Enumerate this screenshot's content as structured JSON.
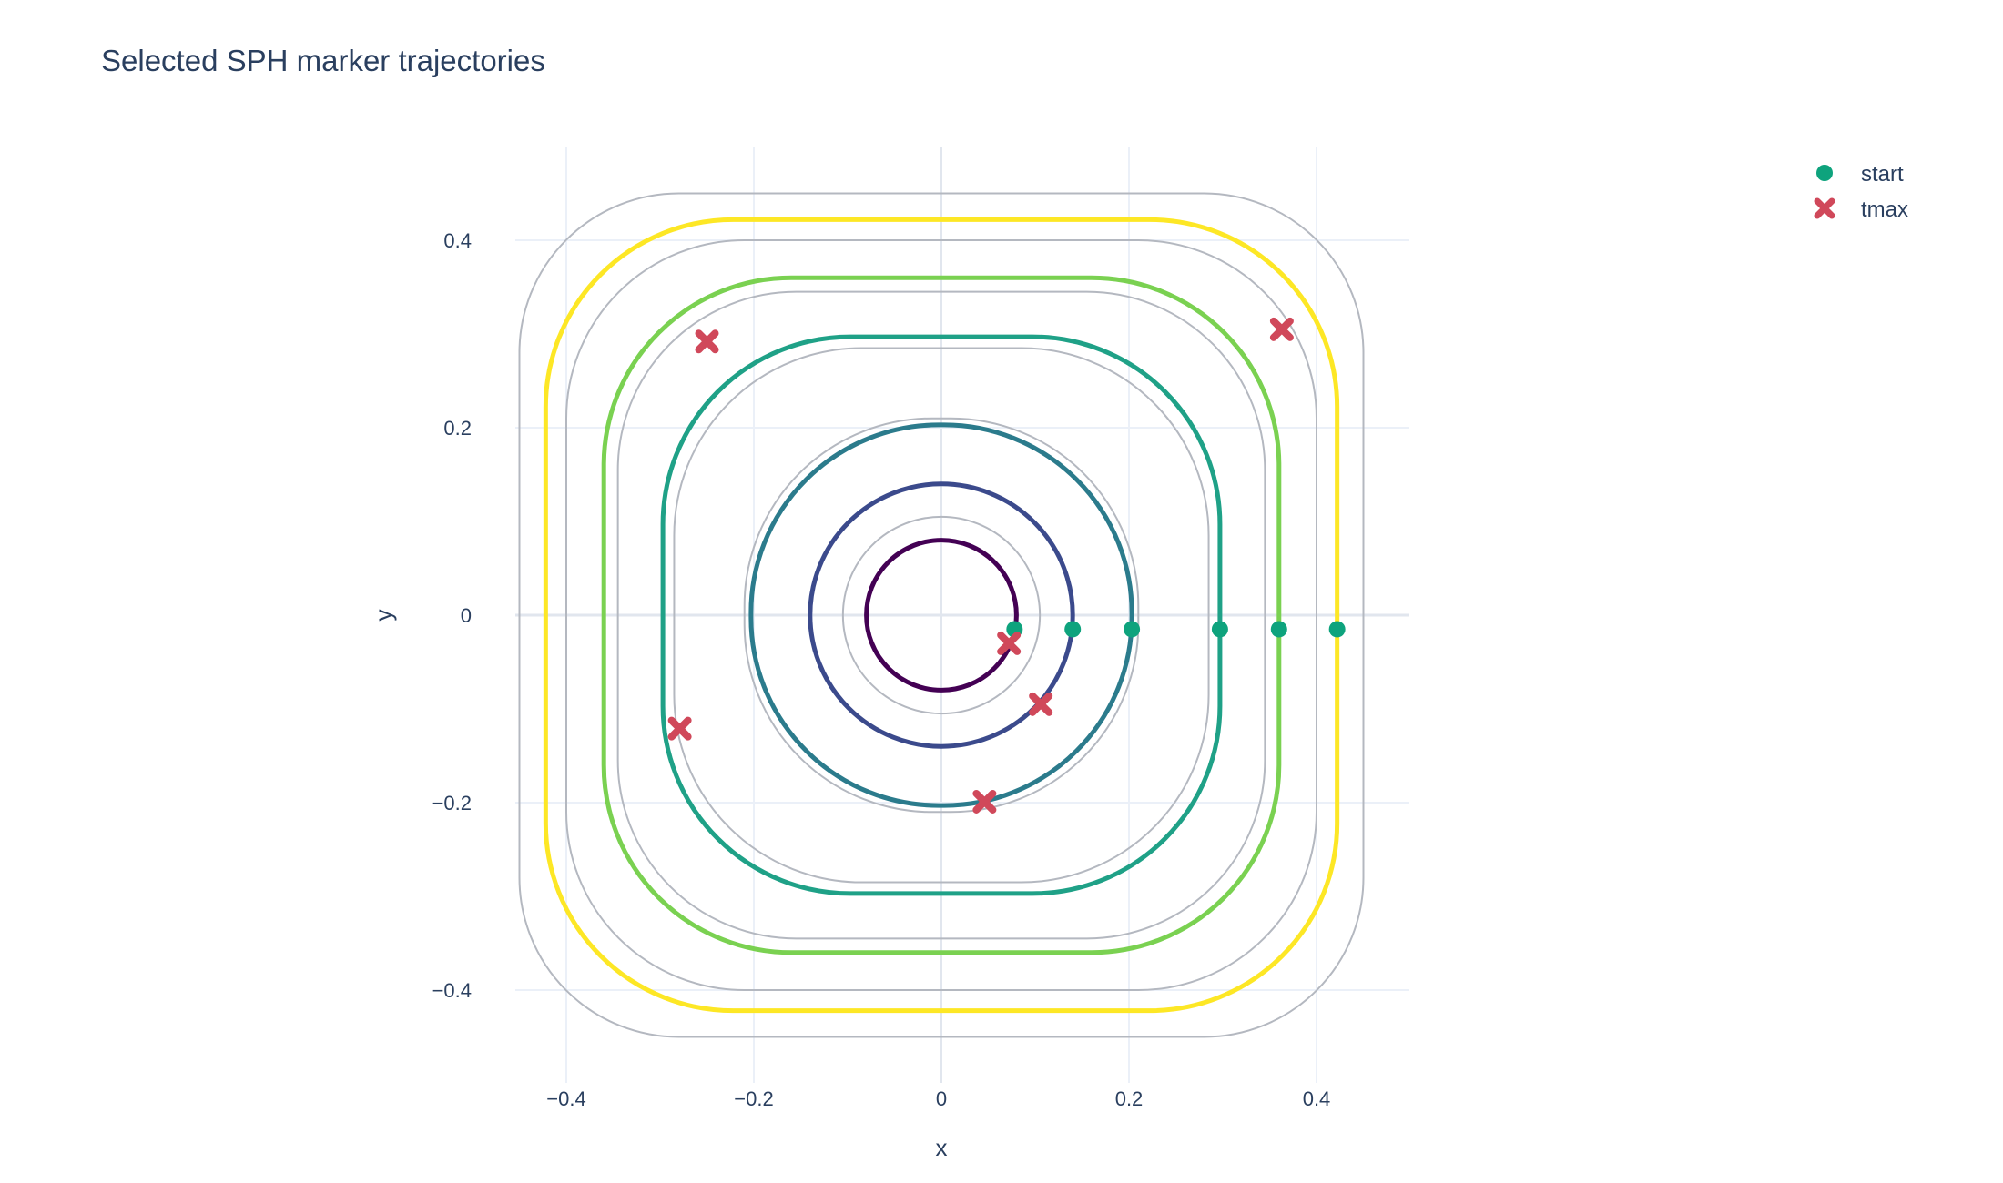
{
  "chart_data": {
    "type": "scatter",
    "title": "Selected SPH marker trajectories",
    "xlabel": "x",
    "ylabel": "y",
    "xlim": [
      -0.5,
      0.5
    ],
    "ylim": [
      -0.5,
      0.5
    ],
    "x_ticks": [
      {
        "value": -0.4,
        "label": "−0.4"
      },
      {
        "value": -0.2,
        "label": "−0.2"
      },
      {
        "value": 0,
        "label": "0"
      },
      {
        "value": 0.2,
        "label": "0.2"
      },
      {
        "value": 0.4,
        "label": "0.4"
      }
    ],
    "y_ticks": [
      {
        "value": 0.4,
        "label": "0.4"
      },
      {
        "value": 0.2,
        "label": "0.2"
      },
      {
        "value": 0,
        "label": "0"
      },
      {
        "value": -0.2,
        "label": "−0.2"
      },
      {
        "value": -0.4,
        "label": "−0.4"
      }
    ],
    "grid": true,
    "legend_position": "top-right",
    "reference_contours": [
      {
        "half_width": 0.105,
        "corner_radius": 0.105
      },
      {
        "half_width": 0.21,
        "corner_radius": 0.2
      },
      {
        "half_width": 0.285,
        "corner_radius": 0.2
      },
      {
        "half_width": 0.345,
        "corner_radius": 0.19
      },
      {
        "half_width": 0.4,
        "corner_radius": 0.19
      },
      {
        "half_width": 0.45,
        "corner_radius": 0.17
      }
    ],
    "contour_color": "#b4b8c0",
    "trajectories": [
      {
        "half_width": 0.08,
        "corner_radius": 0.08,
        "color": "#440154",
        "start": [
          0.078,
          -0.015
        ],
        "tmax": [
          0.072,
          -0.03
        ]
      },
      {
        "half_width": 0.14,
        "corner_radius": 0.14,
        "color": "#3b4a8c",
        "start": [
          0.14,
          -0.015
        ],
        "tmax": [
          0.106,
          -0.095
        ]
      },
      {
        "half_width": 0.203,
        "corner_radius": 0.2,
        "color": "#2b7b8c",
        "start": [
          0.203,
          -0.015
        ],
        "tmax": [
          0.046,
          -0.199
        ]
      },
      {
        "half_width": 0.297,
        "corner_radius": 0.2,
        "color": "#1fa187",
        "start": [
          0.297,
          -0.015
        ],
        "tmax": [
          -0.279,
          -0.121
        ]
      },
      {
        "half_width": 0.36,
        "corner_radius": 0.2,
        "color": "#7ad151",
        "start": [
          0.36,
          -0.015
        ],
        "tmax": [
          -0.25,
          0.292
        ]
      },
      {
        "half_width": 0.422,
        "corner_radius": 0.2,
        "color": "#fde725",
        "start": [
          0.422,
          -0.015
        ],
        "tmax": [
          0.363,
          0.305
        ]
      }
    ],
    "series": [
      {
        "name": "start",
        "color": "#0ea37d",
        "marker": "circle"
      },
      {
        "name": "tmax",
        "color": "#d0485a",
        "marker": "x"
      }
    ]
  }
}
